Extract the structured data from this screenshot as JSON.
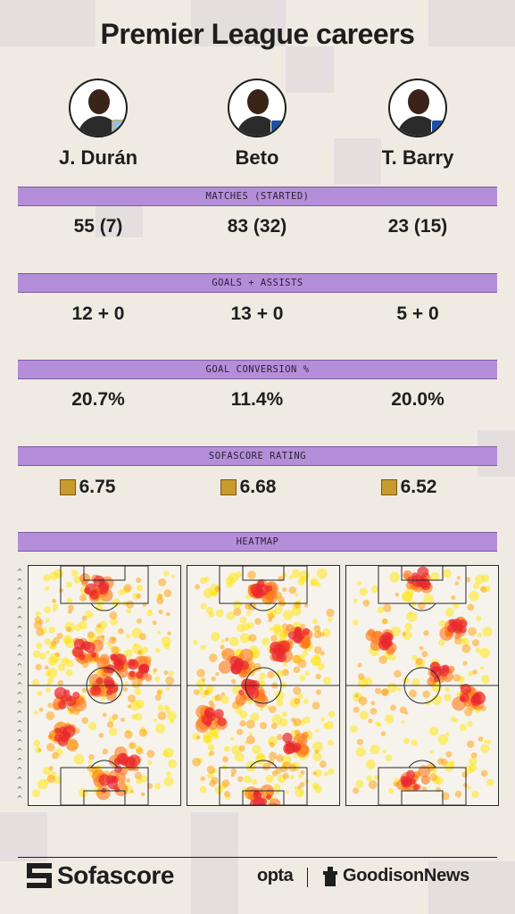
{
  "title": "Premier League careers",
  "players": [
    {
      "name": "J. Durán",
      "badge_color": "#95bfe5",
      "badge_accent": "#d9a93b"
    },
    {
      "name": "Beto",
      "badge_color": "#1b4fa8",
      "badge_accent": "#ffffff"
    },
    {
      "name": "T. Barry",
      "badge_color": "#1b4fa8",
      "badge_accent": "#ffffff"
    }
  ],
  "sections": [
    {
      "label": "MATCHES (STARTED)",
      "values": [
        "55 (7)",
        "83 (32)",
        "23 (15)"
      ]
    },
    {
      "label": "GOALS + ASSISTS",
      "values": [
        "12 + 0",
        "13 + 0",
        "5 + 0"
      ]
    },
    {
      "label": "GOAL CONVERSION %",
      "values": [
        "20.7%",
        "11.4%",
        "20.0%"
      ]
    },
    {
      "label": "SOFASCORE RATING",
      "values": [
        "6.75",
        "6.68",
        "6.52"
      ]
    },
    {
      "label": "HEATMAP",
      "values": []
    }
  ],
  "colors": {
    "bar": "#b58ed9",
    "rating": "#c99a2e",
    "heat_low": "#ffe300",
    "heat_high": "#e8131b"
  },
  "footer": {
    "sofascore": "Sofascore",
    "opta": "opta",
    "goodison": "GoodisonNews"
  }
}
